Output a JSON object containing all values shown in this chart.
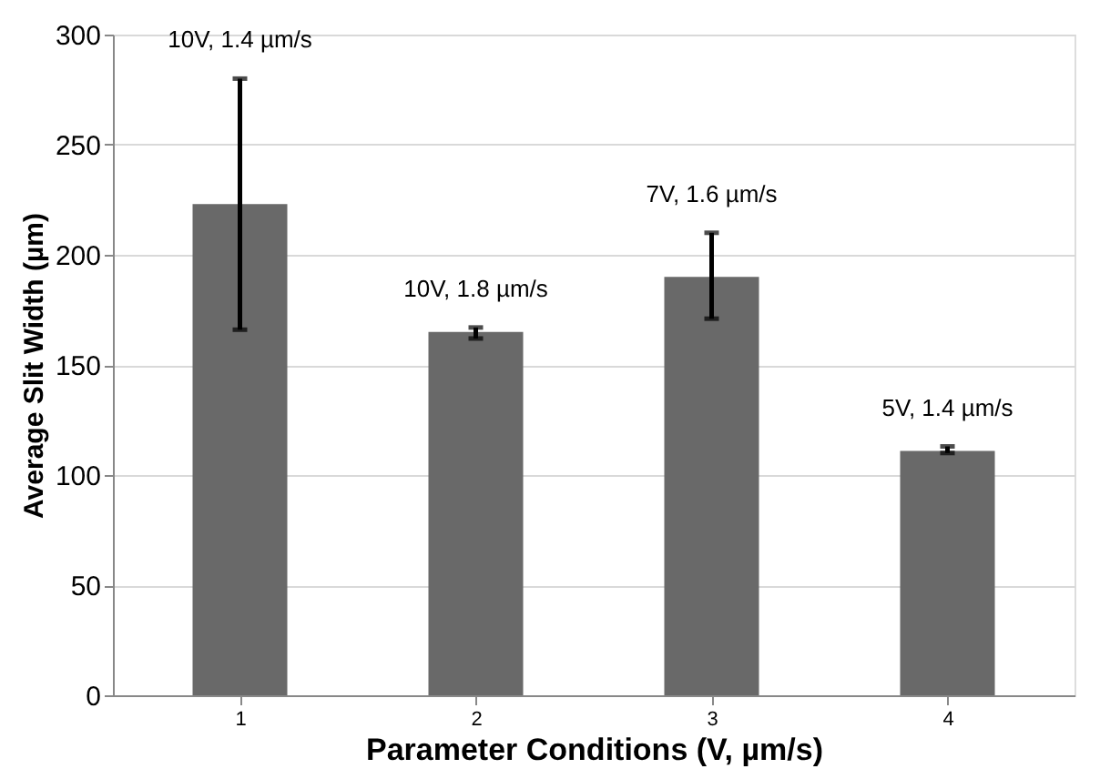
{
  "chart_data": {
    "type": "bar",
    "xlabel": "Parameter Conditions (V, µm/s)",
    "ylabel": "Average Slit Width (µm)",
    "categories": [
      "1",
      "2",
      "3",
      "4"
    ],
    "series": [
      {
        "color": "#696969",
        "values": [
          223,
          165,
          190,
          111
        ],
        "errors": [
          [
            166,
            280
          ],
          [
            162,
            167
          ],
          [
            171,
            210
          ],
          [
            110,
            113
          ]
        ]
      }
    ],
    "ylim": [
      0,
      300
    ],
    "yticks": [
      0,
      50,
      100,
      150,
      200,
      250,
      300
    ],
    "grid": "y",
    "annotations": [
      "10V, 1.4 µm/s",
      "10V, 1.8 µm/s",
      "7V, 1.6 µm/s",
      "5V, 1.4 µm/s"
    ]
  }
}
